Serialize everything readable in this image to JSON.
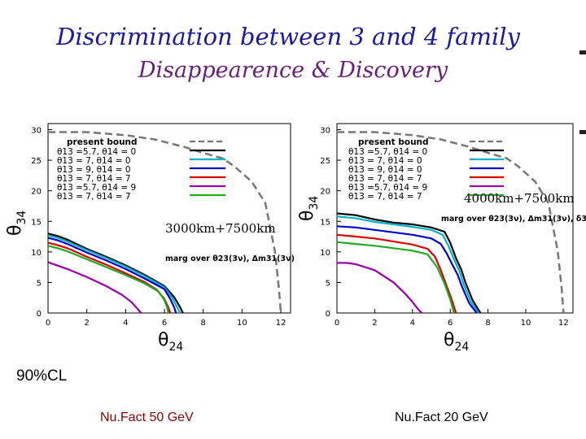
{
  "title": "Discrimination between 3 and 4 family",
  "subtitle": "Disappearence & Discovery",
  "cl_label": "90%CL",
  "experiments": [
    "Nu.Fact 50 GeV",
    "Nu.Fact 20 GeV"
  ],
  "legend": {
    "header": "present bound",
    "entries": [
      "θ13 =5.7, θ14 = 0",
      "θ13 =    7, θ14 = 0",
      "θ13 =    9, θ14 = 0",
      "θ13 =    7, θ14 = 7",
      "θ13 =5.7, θ14 = 9",
      "θ13  =    7, θ14 = 7"
    ]
  },
  "colors": {
    "present_bound": "#777777",
    "black": "#000000",
    "cyan": "#00b0c8",
    "blue": "#0000cc",
    "red": "#dd0000",
    "magenta": "#9900aa",
    "green": "#22aa22"
  },
  "chart_data": [
    {
      "type": "line",
      "xlabel": "θ24",
      "ylabel": "θ34",
      "xlim": [
        0,
        12.5
      ],
      "ylim": [
        0,
        31
      ],
      "xticks": [
        0,
        2,
        4,
        6,
        8,
        10,
        12
      ],
      "yticks": [
        0,
        5,
        10,
        15,
        20,
        25,
        30
      ],
      "baseline": "3000km+7500km",
      "marg": "marg over θ23(3ν), Δm31(3ν)",
      "series": [
        {
          "name": "present bound",
          "color": "#777777",
          "dash": true,
          "x": [
            0,
            2,
            4,
            5.5,
            7,
            8,
            9,
            9.6,
            10.5,
            11.2,
            11.7,
            11.9,
            12
          ],
          "y": [
            29.6,
            29.6,
            29.1,
            28.4,
            27.2,
            26.2,
            25.3,
            24.0,
            21.5,
            18.0,
            10.0,
            4.0,
            0
          ]
        },
        {
          "name": "θ13 =5.7, θ14 = 0",
          "color": "#000000",
          "x": [
            0,
            0.5,
            1,
            2,
            3,
            4,
            5,
            6,
            6.5,
            6.8,
            6.95
          ],
          "y": [
            13.0,
            12.6,
            12.0,
            10.5,
            9.2,
            7.8,
            6.2,
            4.4,
            2.6,
            1.0,
            0
          ]
        },
        {
          "name": "θ13 =    7, θ14 = 0",
          "color": "#00b0c8",
          "x": [
            0,
            0.5,
            1,
            2,
            3,
            4,
            5,
            6,
            6.4,
            6.65,
            6.8
          ],
          "y": [
            12.7,
            12.3,
            11.7,
            10.3,
            9.0,
            7.6,
            6.0,
            4.2,
            2.5,
            1.0,
            0
          ]
        },
        {
          "name": "θ13 =    9, θ14 = 0",
          "color": "#0000cc",
          "x": [
            0,
            0.5,
            1,
            2,
            3,
            4,
            5,
            6,
            6.3,
            6.5,
            6.6
          ],
          "y": [
            12.3,
            11.9,
            11.3,
            9.9,
            8.6,
            7.2,
            5.6,
            3.9,
            2.3,
            0.9,
            0
          ]
        },
        {
          "name": "θ13 =    7, θ14 = 7",
          "color": "#dd0000",
          "x": [
            0,
            0.5,
            1,
            2,
            3,
            4,
            5,
            5.6,
            6.0,
            6.2,
            6.3
          ],
          "y": [
            11.5,
            11.1,
            10.6,
            9.2,
            7.9,
            6.5,
            5.0,
            3.8,
            2.3,
            0.9,
            0
          ]
        },
        {
          "name": "θ13 =5.7, θ14 = 9",
          "color": "#9900aa",
          "x": [
            0,
            1,
            2,
            3,
            3.8,
            4.3,
            4.6,
            4.8
          ],
          "y": [
            8.3,
            7.2,
            5.9,
            4.4,
            3.0,
            1.8,
            0.7,
            0
          ]
        },
        {
          "name": "θ13  =    7, θ14 = 7",
          "color": "#22aa22",
          "x": [
            0,
            0.5,
            1,
            2,
            3,
            4,
            5,
            5.7,
            6.0,
            6.15,
            6.2
          ],
          "y": [
            11.0,
            10.6,
            10.1,
            8.8,
            7.5,
            6.2,
            4.8,
            3.5,
            2.1,
            0.8,
            0
          ]
        }
      ]
    },
    {
      "type": "line",
      "xlabel": "θ24",
      "ylabel": "θ34",
      "xlim": [
        0,
        12.5
      ],
      "ylim": [
        0,
        31
      ],
      "xticks": [
        0,
        2,
        4,
        6,
        8,
        10,
        12
      ],
      "yticks": [
        0,
        5,
        10,
        15,
        20,
        25,
        30
      ],
      "baseline": "4000km+7500km",
      "marg": "marg over θ23(3ν), Δm31(3ν), δ3",
      "series": [
        {
          "name": "present bound",
          "color": "#777777",
          "dash": true,
          "x": [
            0,
            2,
            4,
            5.5,
            7,
            8,
            9,
            9.6,
            10.5,
            11.2,
            11.7,
            11.9,
            12
          ],
          "y": [
            29.6,
            29.6,
            29.1,
            28.4,
            27.2,
            26.2,
            25.3,
            24.0,
            21.5,
            18.0,
            10.0,
            4.0,
            0
          ]
        },
        {
          "name": "θ13 =5.7, θ14 = 0",
          "color": "#000000",
          "x": [
            0,
            1,
            2,
            3,
            4,
            5,
            5.7,
            6.0,
            6.3,
            6.6,
            6.8,
            7.2,
            7.6
          ],
          "y": [
            16.3,
            16.0,
            15.3,
            14.8,
            14.5,
            14.0,
            13.3,
            11.5,
            9.0,
            7.0,
            5.0,
            2.0,
            0
          ]
        },
        {
          "name": "θ13 =    7, θ14 = 0",
          "color": "#00b0c8",
          "x": [
            0,
            1,
            2,
            3,
            4,
            5,
            5.6,
            5.9,
            6.2,
            6.5,
            6.7,
            7.1,
            7.5
          ],
          "y": [
            15.8,
            15.5,
            14.9,
            14.5,
            14.1,
            13.6,
            12.8,
            11.0,
            8.8,
            6.8,
            4.8,
            1.8,
            0
          ]
        },
        {
          "name": "θ13 =    9, θ14 = 0",
          "color": "#0000cc",
          "x": [
            0,
            1,
            2,
            3,
            4,
            5,
            5.5,
            5.8,
            6.1,
            6.4,
            6.6,
            7.0,
            7.4
          ],
          "y": [
            14.2,
            14.0,
            13.6,
            13.2,
            12.8,
            12.2,
            11.3,
            9.8,
            8.0,
            6.2,
            4.5,
            1.6,
            0
          ]
        },
        {
          "name": "θ13 =    7, θ14 = 7",
          "color": "#dd0000",
          "x": [
            0,
            1,
            2,
            3,
            4,
            4.8,
            5.2,
            5.5,
            5.8,
            6.1,
            6.3
          ],
          "y": [
            12.8,
            12.5,
            12.2,
            11.7,
            11.2,
            10.5,
            9.2,
            7.0,
            4.5,
            2.0,
            0
          ]
        },
        {
          "name": "θ13 =5.7, θ14 = 9",
          "color": "#9900aa",
          "x": [
            0,
            0.5,
            1,
            2,
            3,
            3.6,
            4.0,
            4.3,
            4.5
          ],
          "y": [
            8.2,
            8.2,
            8.0,
            7.0,
            5.0,
            3.2,
            1.8,
            0.6,
            0
          ]
        },
        {
          "name": "θ13  =    7, θ14 = 7",
          "color": "#22aa22",
          "x": [
            0,
            1,
            2,
            3,
            4,
            4.8,
            5.3,
            5.7,
            6.0,
            6.2
          ],
          "y": [
            11.6,
            11.3,
            11.0,
            10.6,
            10.2,
            9.6,
            7.5,
            4.8,
            2.2,
            0
          ]
        }
      ]
    }
  ]
}
